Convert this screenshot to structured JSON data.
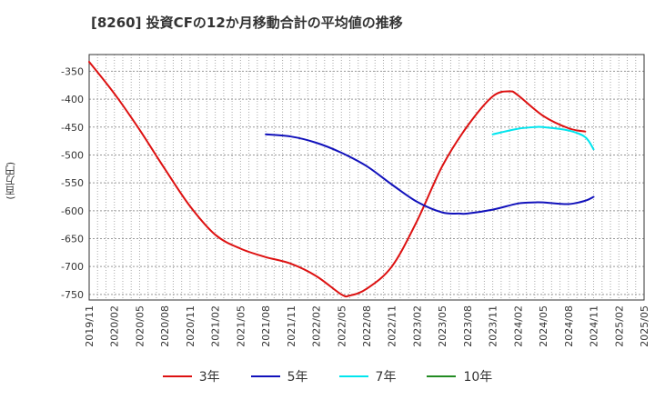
{
  "title": "[8260]  投資CFの12か月移動合計の平均値の推移",
  "y_unit": "(百万円)",
  "chart_data": {
    "type": "line",
    "title": "[8260]  投資CFの12か月移動合計の平均値の推移",
    "ylabel": "(百万円)",
    "ylim": [
      -760,
      -320
    ],
    "yticks": [
      -350,
      -400,
      -450,
      -500,
      -550,
      -600,
      -650,
      -700,
      -750
    ],
    "x_ticks": [
      "2019/11",
      "2020/02",
      "2020/05",
      "2020/08",
      "2020/11",
      "2021/02",
      "2021/05",
      "2021/08",
      "2021/11",
      "2022/02",
      "2022/05",
      "2022/08",
      "2022/11",
      "2023/02",
      "2023/05",
      "2023/08",
      "2023/11",
      "2024/02",
      "2024/05",
      "2024/08",
      "2024/11",
      "2025/02",
      "2025/05"
    ],
    "grid": true,
    "legend_position": "bottom",
    "series": [
      {
        "name": "3年",
        "color": "#dd1111",
        "points": [
          [
            "2019/11",
            -333
          ],
          [
            "2020/02",
            -390
          ],
          [
            "2020/05",
            -455
          ],
          [
            "2020/08",
            -525
          ],
          [
            "2020/11",
            -592
          ],
          [
            "2021/02",
            -643
          ],
          [
            "2021/05",
            -668
          ],
          [
            "2021/08",
            -683
          ],
          [
            "2021/11",
            -695
          ],
          [
            "2022/02",
            -717
          ],
          [
            "2022/05",
            -750
          ],
          [
            "2022/06",
            -752
          ],
          [
            "2022/08",
            -740
          ],
          [
            "2022/11",
            -700
          ],
          [
            "2023/02",
            -618
          ],
          [
            "2023/05",
            -520
          ],
          [
            "2023/08",
            -448
          ],
          [
            "2023/11",
            -395
          ],
          [
            "2024/01",
            -386
          ],
          [
            "2024/02",
            -393
          ],
          [
            "2024/05",
            -430
          ],
          [
            "2024/08",
            -452
          ],
          [
            "2024/10",
            -458
          ]
        ]
      },
      {
        "name": "5年",
        "color": "#1111bb",
        "points": [
          [
            "2021/08",
            -463
          ],
          [
            "2021/11",
            -467
          ],
          [
            "2022/02",
            -478
          ],
          [
            "2022/05",
            -496
          ],
          [
            "2022/08",
            -520
          ],
          [
            "2022/11",
            -553
          ],
          [
            "2023/02",
            -584
          ],
          [
            "2023/05",
            -603
          ],
          [
            "2023/07",
            -605
          ],
          [
            "2023/08",
            -605
          ],
          [
            "2023/11",
            -598
          ],
          [
            "2024/02",
            -587
          ],
          [
            "2024/04",
            -585
          ],
          [
            "2024/05",
            -585
          ],
          [
            "2024/08",
            -588
          ],
          [
            "2024/10",
            -582
          ],
          [
            "2024/11",
            -575
          ]
        ]
      },
      {
        "name": "7年",
        "color": "#00e5ee",
        "points": [
          [
            "2023/11",
            -463
          ],
          [
            "2024/02",
            -453
          ],
          [
            "2024/04",
            -450
          ],
          [
            "2024/05",
            -450
          ],
          [
            "2024/08",
            -456
          ],
          [
            "2024/10",
            -468
          ],
          [
            "2024/11",
            -490
          ]
        ]
      },
      {
        "name": "10年",
        "color": "#228b22",
        "points": []
      }
    ]
  }
}
